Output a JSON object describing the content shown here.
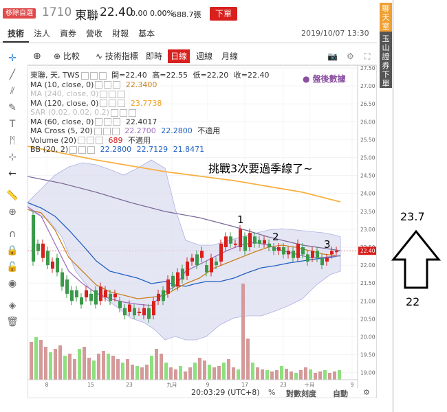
{
  "header": {
    "tag": "移除自選",
    "code": "1710",
    "name": "東聯",
    "price": "22.40",
    "change": "0.00 0.00%",
    "volume": "688.7張",
    "order_button": "下單",
    "datetime": "2019/10/07 13:30"
  },
  "tabs": [
    "技術",
    "法人",
    "資券",
    "營收",
    "財報",
    "基本"
  ],
  "side": {
    "chat": "聊天室",
    "order": "玉山證券下單"
  },
  "toolbar": {
    "compare": "比較",
    "indicators": "技術指標",
    "intraday": "即時",
    "daily": "日線",
    "weekly": "週線",
    "monthly": "月線"
  },
  "legend": [
    {
      "label": "東聯, 天, TWS",
      "values": [
        {
          "text": "開=22.40",
          "color": "#333"
        },
        {
          "text": "高=22.55",
          "color": "#333"
        },
        {
          "text": "低=22.20",
          "color": "#333"
        },
        {
          "text": "收=22.40",
          "color": "#333"
        }
      ]
    },
    {
      "label": "MA (10, close, 0)",
      "values": [
        {
          "text": "22.3400",
          "color": "#c8801f"
        }
      ]
    },
    {
      "label": "MA (240, close, 0)",
      "faded": true,
      "values": []
    },
    {
      "label": "MA (120, close, 0)",
      "values": [
        {
          "text": "23.7738",
          "color": "#f0a020"
        }
      ]
    },
    {
      "label": "SAR (0.02, 0.02, 0.2)",
      "faded": true,
      "values": []
    },
    {
      "label": "MA (60, close, 0)",
      "values": [
        {
          "text": "22.4017",
          "color": "#333"
        }
      ]
    },
    {
      "label": "MA Cross (5, 20)",
      "values": [
        {
          "text": "22.2700",
          "color": "#a070c0"
        },
        {
          "text": "22.2800",
          "color": "#2060c0"
        },
        {
          "text": "不適用",
          "color": "#333"
        }
      ]
    },
    {
      "label": "Volume (20)",
      "values": [
        {
          "text": "689",
          "color": "#d8201d"
        },
        {
          "text": "不適用",
          "color": "#333"
        }
      ]
    },
    {
      "label": "BB (20, 2)",
      "values": [
        {
          "text": "22.2800",
          "color": "#2060c0"
        },
        {
          "text": "22.7129",
          "color": "#2060c0"
        },
        {
          "text": "21.8471",
          "color": "#2060c0"
        }
      ]
    }
  ],
  "watermark": "盤後數據",
  "annotation": "挑戰3次要過季線了~",
  "markers": [
    "1",
    "2",
    "3"
  ],
  "y_axis": [
    "27.50",
    "27.00",
    "26.50",
    "26.00",
    "25.50",
    "25.00",
    "24.50",
    "24.00",
    "23.50",
    "23.00",
    "22.50",
    "22.00",
    "21.50",
    "21.00",
    "20.50",
    "20.00",
    "19.50",
    "19.00"
  ],
  "last_price_tag": "22.40",
  "x_axis": [
    "8",
    "15",
    "23",
    "九月",
    "9",
    "17",
    "23",
    "十月",
    "9"
  ],
  "bottom": {
    "time": "20:03:29 (UTC+8)",
    "percent": "%",
    "log": "對數刻度",
    "auto": "自動"
  },
  "arrow_note": {
    "top": "23.7",
    "bottom": "22"
  },
  "colors": {
    "up": "#d8201d",
    "down": "#3b9a4a",
    "vol_up": "#d49a9a",
    "vol_down": "#8ee07e",
    "ma120": "#f8b040",
    "ma60": "#7a6a98",
    "ma20": "#2060c0",
    "ma10": "#c8801f",
    "bb": "#a070c0"
  }
}
